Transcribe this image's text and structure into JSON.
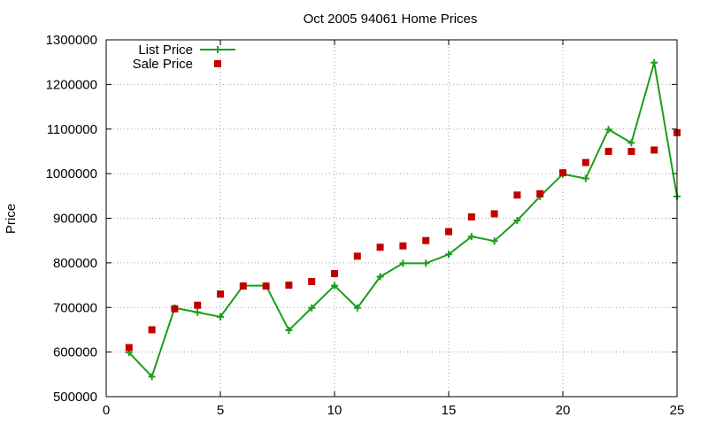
{
  "chart_data": {
    "type": "line",
    "title": "Oct 2005 94061 Home Prices",
    "xlabel": "",
    "ylabel": "Price",
    "xlim": [
      0,
      25
    ],
    "ylim": [
      500000,
      1300000
    ],
    "xticks": [
      0,
      5,
      10,
      15,
      20,
      25
    ],
    "yticks": [
      500000,
      600000,
      700000,
      800000,
      900000,
      1000000,
      1100000,
      1200000,
      1300000
    ],
    "grid": true,
    "legend_position": "top-left",
    "x": [
      1,
      2,
      3,
      4,
      5,
      6,
      7,
      8,
      9,
      10,
      11,
      12,
      13,
      14,
      15,
      16,
      17,
      18,
      19,
      20,
      21,
      22,
      23,
      24,
      25
    ],
    "series": [
      {
        "name": "List Price",
        "style": "linespoints",
        "marker": "plus",
        "color": "#1a9e1a",
        "values": [
          599000,
          545000,
          699000,
          689000,
          679000,
          749000,
          749000,
          649000,
          699000,
          749000,
          699000,
          769000,
          799000,
          799000,
          819000,
          859000,
          849000,
          895000,
          949000,
          999000,
          989000,
          1099000,
          1069000,
          1249000,
          949000
        ]
      },
      {
        "name": "Sale Price",
        "style": "points",
        "marker": "square",
        "color": "#c00000",
        "values": [
          610000,
          650000,
          697000,
          705000,
          730000,
          748000,
          748000,
          750000,
          758000,
          776000,
          815000,
          835000,
          838000,
          850000,
          870000,
          903000,
          910000,
          952000,
          955000,
          1002000,
          1025000,
          1050000,
          1050000,
          1053000,
          1092000
        ]
      }
    ]
  }
}
